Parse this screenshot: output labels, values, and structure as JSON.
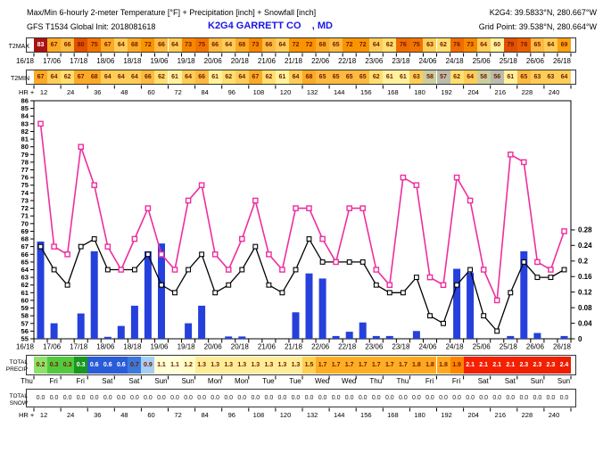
{
  "header": {
    "title": "Max/Min 6-hourly 2-meter Temperature [°F] + Precipitation [inch] + Snowfall [inch]",
    "station_coords": "K2G4: 39.5833°N, 280.667°W",
    "model_init": "GFS T1534 Global Init: 2018081618",
    "station_name": "K2G4 GARRETT CO    , MD",
    "grid_point": "Grid Point: 39.538°N, 280.664°W"
  },
  "rows": {
    "t2max": {
      "label": "T2MAX",
      "values": [
        83,
        67,
        66,
        80,
        75,
        67,
        64,
        68,
        72,
        66,
        64,
        73,
        75,
        66,
        64,
        68,
        73,
        66,
        64,
        72,
        72,
        68,
        65,
        72,
        72,
        64,
        62,
        76,
        75,
        63,
        62,
        76,
        73,
        64,
        60,
        79,
        78,
        65,
        64,
        69
      ]
    },
    "t2min": {
      "label": "T2MIN",
      "values": [
        67,
        64,
        62,
        67,
        68,
        64,
        64,
        64,
        66,
        62,
        61,
        64,
        66,
        61,
        62,
        64,
        67,
        62,
        61,
        64,
        68,
        65,
        65,
        65,
        65,
        62,
        61,
        61,
        63,
        58,
        57,
        62,
        64,
        58,
        56,
        61,
        65,
        63,
        63,
        64
      ]
    },
    "dates": [
      "16/18",
      "17/06",
      "17/18",
      "18/06",
      "18/18",
      "19/06",
      "19/18",
      "20/06",
      "20/18",
      "21/06",
      "21/18",
      "22/06",
      "22/18",
      "23/06",
      "23/18",
      "24/06",
      "24/18",
      "25/06",
      "25/18",
      "26/06",
      "26/18"
    ],
    "hours_label": "HR  +",
    "hours": [
      12,
      24,
      36,
      48,
      60,
      72,
      84,
      96,
      108,
      120,
      132,
      144,
      156,
      168,
      180,
      192,
      204,
      216,
      228,
      240
    ],
    "total_precip": {
      "label_line1": "TOTAL",
      "label_line2": "PRECIP",
      "values": [
        "0.2",
        "0.3",
        "0.3",
        "0.3",
        "0.6",
        "0.6",
        "0.6",
        "0.7",
        "0.9",
        "1.1",
        "1.1",
        "1.2",
        "1.3",
        "1.3",
        "1.3",
        "1.3",
        "1.3",
        "1.3",
        "1.3",
        "1.3",
        "1.5",
        "1.7",
        "1.7",
        "1.7",
        "1.7",
        "1.7",
        "1.7",
        "1.7",
        "1.8",
        "1.8",
        "1.8",
        "1.9",
        "2.1",
        "2.1",
        "2.1",
        "2.1",
        "2.3",
        "2.3",
        "2.3",
        "2.4"
      ]
    },
    "days": [
      "Thu",
      "Fri",
      "Fri",
      "Sat",
      "Sat",
      "Sun",
      "Sun",
      "Mon",
      "Mon",
      "Tue",
      "Tue",
      "Wed",
      "Wed",
      "Thu",
      "Thu",
      "Fri",
      "Fri",
      "Sat",
      "Sat",
      "Sun",
      "Sun"
    ],
    "total_snow": {
      "label_line1": "TOTAL",
      "label_line2": "SNOW",
      "values": [
        "0.0",
        "0.0",
        "0.0",
        "0.0",
        "0.0",
        "0.0",
        "0.0",
        "0.0",
        "0.0",
        "0.0",
        "0.0",
        "0.0",
        "0.0",
        "0.0",
        "0.0",
        "0.0",
        "0.0",
        "0.0",
        "0.0",
        "0.0",
        "0.0",
        "0.0",
        "0.0",
        "0.0",
        "0.0",
        "0.0",
        "0.0",
        "0.0",
        "0.0",
        "0.0",
        "0.0",
        "0.0",
        "0.0",
        "0.0",
        "0.0",
        "0.0",
        "0.0",
        "0.0",
        "0.0",
        "0.0"
      ]
    }
  },
  "colors": {
    "t2max_line": "#ee2e9e",
    "t2min_line": "#000000",
    "bar": "#2640dc",
    "station_text": "#1a16e6",
    "cell_dark_text": "#701a00",
    "t2max_cells": [
      "#aa1111",
      "#fbaa26",
      "#fcba40",
      "#e25000",
      "#f27400",
      "#fbaa26",
      "#fdcd58",
      "#fbaa26",
      "#fa9400",
      "#fcba40",
      "#fdcd58",
      "#f78700",
      "#f27400",
      "#fcba40",
      "#fdcd58",
      "#fbaa26",
      "#f78700",
      "#fcba40",
      "#fdcd58",
      "#fa9400",
      "#fa9400",
      "#fbaa26",
      "#fcba40",
      "#fa9400",
      "#fa9400",
      "#fdcd58",
      "#ffdf70",
      "#ef6c00",
      "#f27400",
      "#fdcd58",
      "#ffdf70",
      "#ef6c00",
      "#f78700",
      "#fdcd58",
      "#fff29d",
      "#e25000",
      "#ea6000",
      "#fcba40",
      "#fdcd58",
      "#fba00e"
    ],
    "t2min_cells": [
      "#fbaa26",
      "#fdcd58",
      "#ffdf70",
      "#fbaa26",
      "#fbaa26",
      "#fdcd58",
      "#fdcd58",
      "#fdcd58",
      "#fcba40",
      "#ffdf70",
      "#fff29d",
      "#fdcd58",
      "#fcba40",
      "#fff29d",
      "#ffdf70",
      "#fdcd58",
      "#fbaa26",
      "#ffdf70",
      "#fff29d",
      "#fdcd58",
      "#fbaa26",
      "#fcba40",
      "#fcba40",
      "#fcba40",
      "#fcba40",
      "#ffdf70",
      "#fff29d",
      "#fff29d",
      "#fdcd58",
      "#cbcfa0",
      "#babdab",
      "#ffdf70",
      "#fdcd58",
      "#cbcfa0",
      "#babdab",
      "#fff29d",
      "#fcba40",
      "#fdcd58",
      "#fdcd58",
      "#fdcd58"
    ],
    "precip_cells": [
      "#8ee26a",
      "#52c93e",
      "#52c93e",
      "#18981e",
      "#2a5cd8",
      "#2a5cd8",
      "#2a5cd8",
      "#3a78dc",
      "#a6cdf2",
      "#ffffd2",
      "#ffffd2",
      "#fffdc4",
      "#ffec96",
      "#ffec96",
      "#ffec96",
      "#ffec96",
      "#ffec96",
      "#ffec96",
      "#ffec96",
      "#ffec96",
      "#ffd051",
      "#ffae24",
      "#ffae24",
      "#ffae24",
      "#ffae24",
      "#ffae24",
      "#ffae24",
      "#ffae24",
      "#ffa81e",
      "#ffa81e",
      "#ffa81e",
      "#ff8400",
      "#f52000",
      "#f52000",
      "#f52000",
      "#f52000",
      "#f02000",
      "#f02000",
      "#f02000",
      "#ee1c00"
    ]
  },
  "chart_data": {
    "type": "meteogram line+bar",
    "title": "Max/Min 6-hourly 2-meter Temperature [°F] + Precipitation [inch] + Snowfall [inch]",
    "x_slots_6h": 40,
    "x_start": "16/18",
    "x_end": "26/18",
    "x_tick_labels": [
      "16/18",
      "17/06",
      "17/18",
      "18/06",
      "18/18",
      "19/06",
      "19/18",
      "20/06",
      "20/18",
      "21/06",
      "21/18",
      "22/06",
      "22/18",
      "23/06",
      "23/18",
      "24/06",
      "24/18",
      "25/06",
      "25/18",
      "26/06",
      "26/18"
    ],
    "left_axis": {
      "unit": "°F",
      "min": 55,
      "max": 86,
      "ticks": [
        86,
        85,
        84,
        83,
        82,
        81,
        80,
        79,
        78,
        77,
        76,
        75,
        74,
        73,
        72,
        71,
        70,
        69,
        68,
        67,
        66,
        65,
        64,
        63,
        62,
        61,
        60,
        59,
        58,
        57,
        56,
        55
      ]
    },
    "right_axis": {
      "unit": "inch",
      "min": 0,
      "max": 0.28,
      "tick_labels": [
        "0.28",
        "0.24",
        "0.2",
        "0.16",
        "0.12",
        "0.08",
        "0.04",
        "0"
      ]
    },
    "series": [
      {
        "name": "T2MAX",
        "type": "line",
        "marker": "open-square",
        "color": "#ee2e9e",
        "values": [
          83,
          67,
          66,
          80,
          75,
          67,
          64,
          68,
          72,
          66,
          64,
          73,
          75,
          66,
          64,
          68,
          73,
          66,
          64,
          72,
          72,
          68,
          65,
          72,
          72,
          64,
          62,
          76,
          75,
          63,
          62,
          76,
          73,
          64,
          60,
          79,
          78,
          65,
          64,
          69
        ]
      },
      {
        "name": "T2MIN",
        "type": "line",
        "marker": "open-square",
        "color": "#000000",
        "values": [
          67,
          64,
          62,
          67,
          68,
          64,
          64,
          64,
          66,
          62,
          61,
          64,
          66,
          61,
          62,
          64,
          67,
          62,
          61,
          64,
          68,
          65,
          65,
          65,
          65,
          62,
          61,
          61,
          63,
          58,
          57,
          62,
          64,
          58,
          56,
          61,
          65,
          63,
          63,
          64
        ]
      },
      {
        "name": "6-hourly precipitation",
        "type": "bar",
        "color": "#2640dc",
        "values": [
          0.25,
          0.04,
          0,
          0.065,
          0.225,
          0.005,
          0.033,
          0.085,
          0.225,
          0.245,
          0,
          0.04,
          0.085,
          0,
          0.006,
          0.006,
          0,
          0,
          0,
          0.068,
          0.168,
          0.155,
          0.007,
          0.018,
          0.042,
          0.007,
          0.007,
          0,
          0.02,
          0,
          0,
          0.18,
          0.17,
          0,
          0,
          0.007,
          0.225,
          0.015,
          0,
          0.007
        ]
      }
    ]
  }
}
